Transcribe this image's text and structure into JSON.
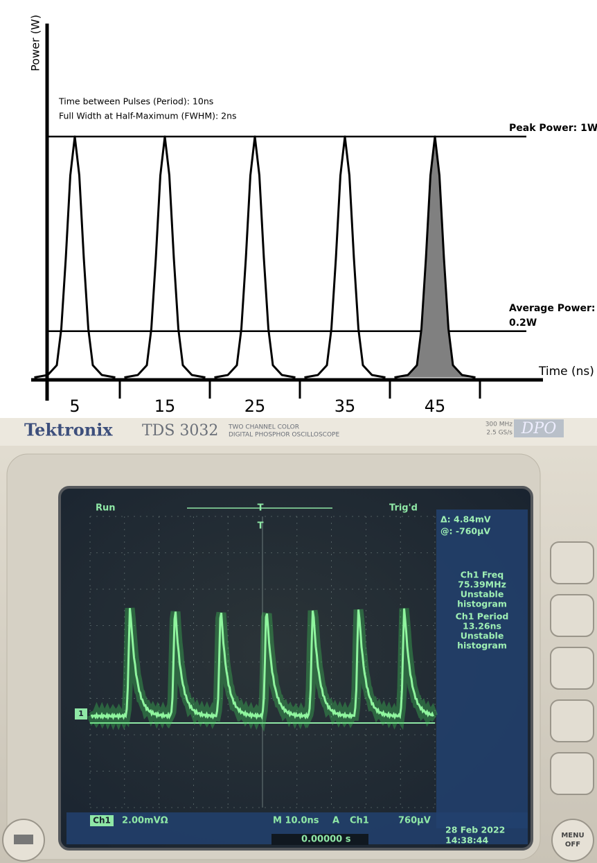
{
  "chart_data": {
    "type": "line",
    "xlabel": "Time (ns)",
    "ylabel": "Power (W)",
    "annotations": [
      "Time between Pulses (Period): 10ns",
      "Full Width at Half-Maximum (FWHM): 2ns"
    ],
    "hlines": [
      {
        "value": 1,
        "label": [
          "Peak Power: 1W"
        ]
      },
      {
        "value": 0.2,
        "label": [
          "Average Power:",
          "0.2W"
        ]
      }
    ],
    "xlim": [
      0,
      57
    ],
    "ylim": [
      0,
      1.45
    ],
    "xticks": [
      5,
      15,
      25,
      35,
      45
    ],
    "minor_xticks": [
      10,
      20,
      30,
      40,
      50
    ],
    "series": [
      {
        "color": "#000000",
        "x": [
          0.5,
          2,
          3,
          3.5,
          4,
          4.5,
          5,
          5.5,
          6,
          6.5,
          7,
          8,
          9.5
        ],
        "values": [
          0.01,
          0.02,
          0.06,
          0.21,
          0.5,
          0.84,
          1,
          0.84,
          0.5,
          0.21,
          0.06,
          0.02,
          0.01
        ]
      },
      {
        "color": "#000000",
        "x": [
          10.5,
          12,
          13,
          13.5,
          14,
          14.5,
          15,
          15.5,
          16,
          16.5,
          17,
          18,
          19.5
        ],
        "values": [
          0.01,
          0.02,
          0.06,
          0.21,
          0.5,
          0.84,
          1,
          0.84,
          0.5,
          0.21,
          0.06,
          0.02,
          0.01
        ]
      },
      {
        "color": "#000000",
        "x": [
          20.5,
          22,
          23,
          23.5,
          24,
          24.5,
          25,
          25.5,
          26,
          26.5,
          27,
          28,
          29.5
        ],
        "values": [
          0.01,
          0.02,
          0.06,
          0.21,
          0.5,
          0.84,
          1,
          0.84,
          0.5,
          0.21,
          0.06,
          0.02,
          0.01
        ]
      },
      {
        "color": "#000000",
        "x": [
          30.5,
          32,
          33,
          33.5,
          34,
          34.5,
          35,
          35.5,
          36,
          36.5,
          37,
          38,
          39.5
        ],
        "values": [
          0.01,
          0.02,
          0.06,
          0.21,
          0.5,
          0.84,
          1,
          0.84,
          0.5,
          0.21,
          0.06,
          0.02,
          0.01
        ]
      },
      {
        "color": "#000000",
        "fill": "#808080",
        "x": [
          40.5,
          42,
          43,
          43.5,
          44,
          44.5,
          45,
          45.5,
          46,
          46.5,
          47,
          48,
          49.5
        ],
        "values": [
          0.01,
          0.02,
          0.06,
          0.21,
          0.5,
          0.84,
          1,
          0.84,
          0.5,
          0.21,
          0.06,
          0.02,
          0.01
        ]
      }
    ]
  },
  "oscilloscope": {
    "brand": "Tektronix",
    "model": "TDS 3032",
    "model_line1": "TWO CHANNEL COLOR",
    "model_line2": "DIGITAL PHOSPHOR OSCILLOSCOPE",
    "spec": [
      "300 MHz",
      "2.5 GS/s"
    ],
    "badge": "DPO",
    "status": "Run",
    "trigger_state": "Trig'd",
    "trigger_marker": "T",
    "channel_marker": "1",
    "cursor": [
      "Δ: 4.84mV",
      "@: -760µV"
    ],
    "measurements": [
      "Ch1 Freq",
      "75.39MHz",
      "Unstable",
      "histogram",
      "Ch1 Period",
      "13.26ns",
      "Unstable",
      "histogram"
    ],
    "channel": "Ch1",
    "scale": "2.00mVΩ",
    "timebase": "M 10.0ns",
    "trigger": [
      "A",
      "Ch1",
      "760µV"
    ],
    "position": "0.00000 s",
    "date": "28 Feb 2022",
    "time": "14:38:44",
    "menu": [
      "MENU",
      "OFF"
    ]
  }
}
